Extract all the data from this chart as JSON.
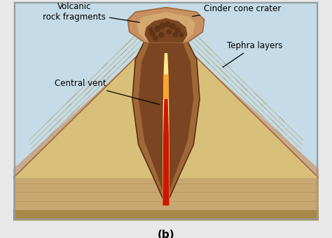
{
  "fig_bg": "#e8e8e8",
  "label_b": "(b)",
  "labels": {
    "volcanic_rock": "Volcanic\nrock fragments",
    "cinder_cone": "Cinder cone crater",
    "tephra": "Tephra layers",
    "central_vent": "Central vent"
  },
  "colors": {
    "sky": "#c5dce8",
    "volcano_sand": "#d9c07a",
    "volcano_sand_dark": "#c9a855",
    "volcano_pink": "#c9a080",
    "ground_top": "#c8a870",
    "ground_mid": "#b89a5a",
    "ground_bot": "#a88848",
    "ground_stripe": "#b09050",
    "vent_outer": "#a06838",
    "vent_brown": "#7a4520",
    "vent_dark": "#5a3010",
    "crater_tan": "#c89060",
    "crater_light": "#d4a870",
    "cinder_brown": "#7a4520",
    "cinder_dark": "#5a3015",
    "lava_yellow": "#ffe890",
    "lava_orange": "#ff8800",
    "lava_red": "#cc1800",
    "hatch": "#b09040",
    "border": "#999999"
  }
}
